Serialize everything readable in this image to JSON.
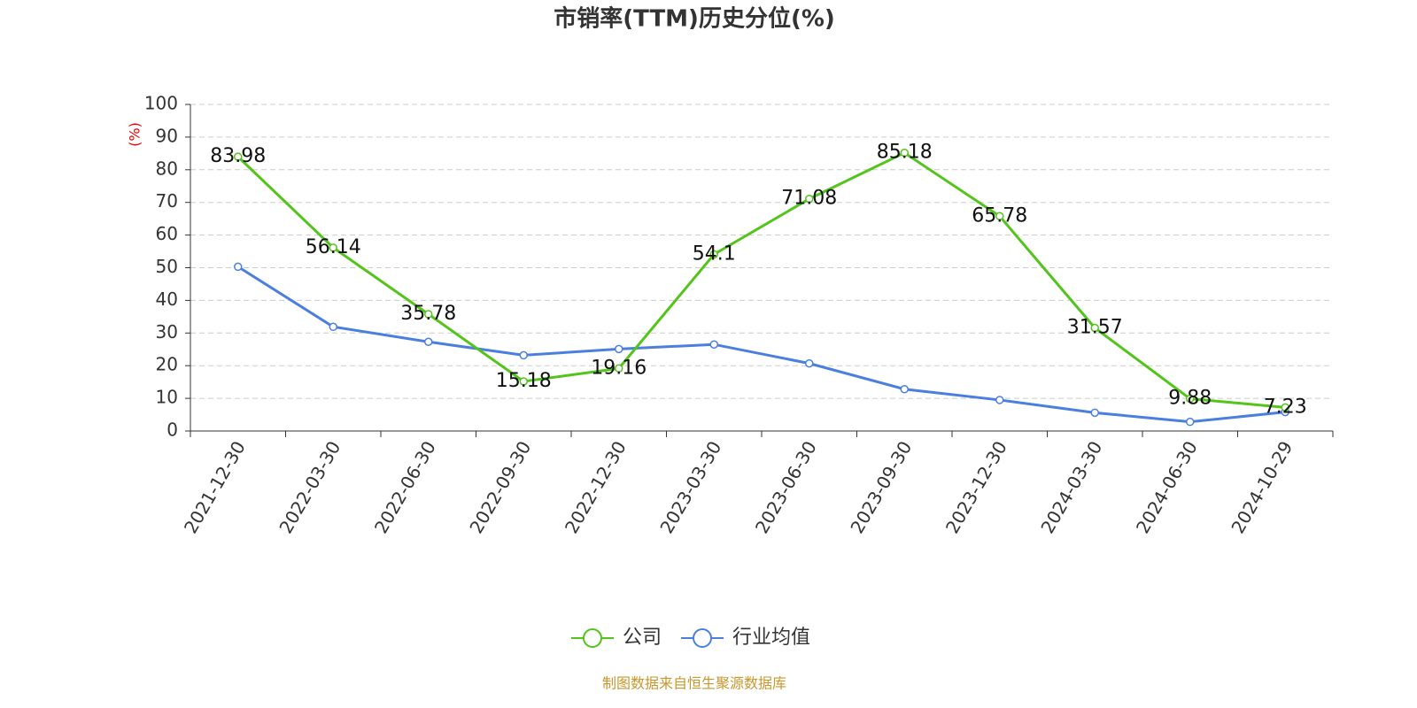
{
  "chart_data": {
    "type": "line",
    "title": "市销率(TTM)历史分位(%)",
    "y_label": "(%)",
    "categories": [
      "2021-12-30",
      "2022-03-30",
      "2022-06-30",
      "2022-09-30",
      "2022-12-30",
      "2023-03-30",
      "2023-06-30",
      "2023-09-30",
      "2023-12-30",
      "2024-03-30",
      "2024-06-30",
      "2024-10-29"
    ],
    "series": [
      {
        "name": "公司",
        "color": "#52c41a",
        "values": [
          83.98,
          56.14,
          35.78,
          15.18,
          19.16,
          54.1,
          71.08,
          85.18,
          65.78,
          31.57,
          9.88,
          7.23
        ],
        "show_labels": true
      },
      {
        "name": "行业均值",
        "color": "#4a7fe0",
        "values": [
          50.3,
          31.9,
          27.3,
          23.2,
          25.1,
          26.5,
          20.7,
          12.8,
          9.5,
          5.6,
          2.8,
          5.8
        ],
        "show_labels": false
      }
    ],
    "ylim": [
      0,
      100
    ],
    "yticks": [
      0,
      10,
      20,
      30,
      40,
      50,
      60,
      70,
      80,
      90,
      100
    ],
    "grid": true,
    "source": "制图数据来自恒生聚源数据库"
  }
}
